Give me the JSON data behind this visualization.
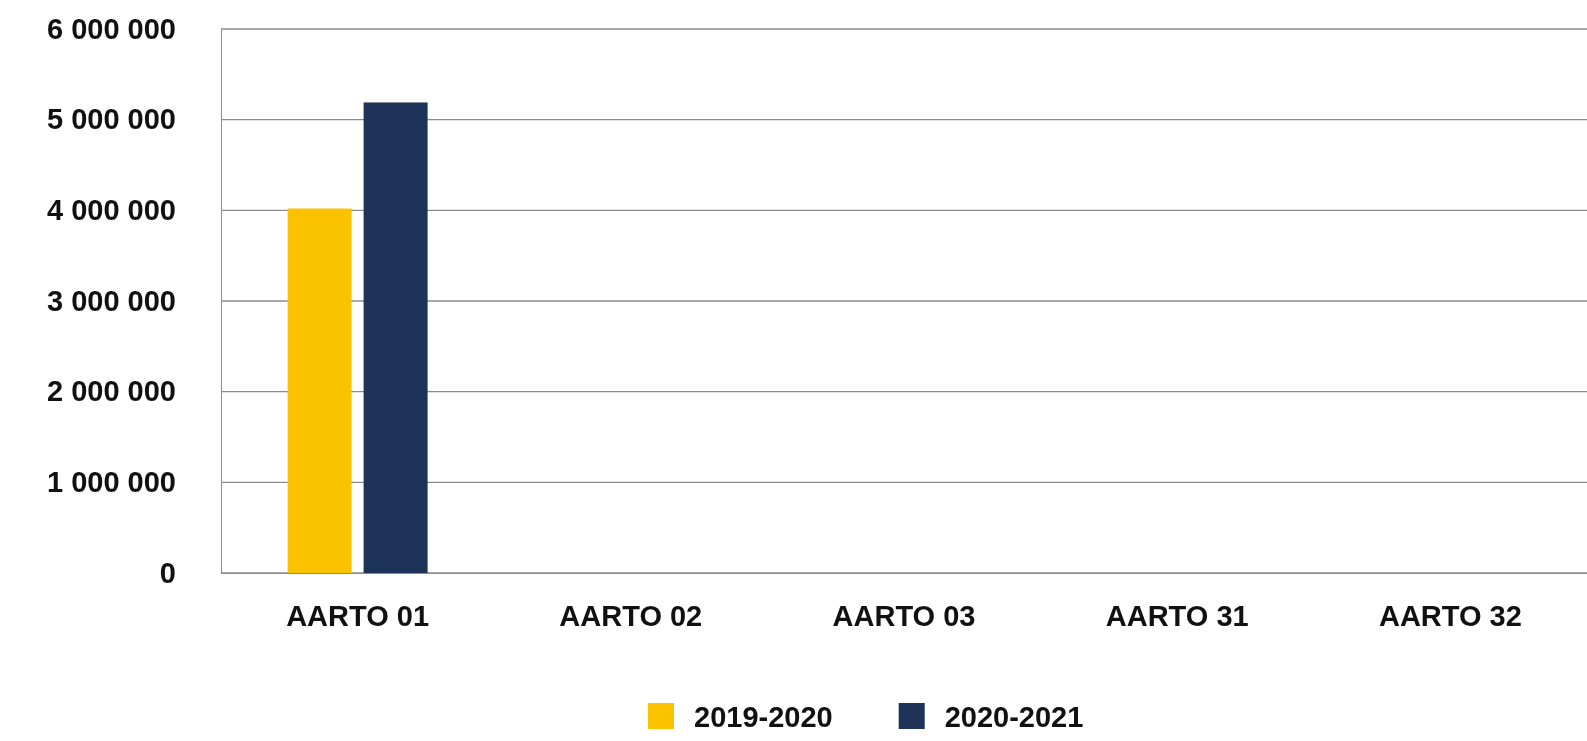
{
  "chart_data": {
    "type": "bar",
    "categories": [
      "AARTO 01",
      "AARTO 02",
      "AARTO 03",
      "AARTO 31",
      "AARTO 32"
    ],
    "series": [
      {
        "name": "2019-2020",
        "color": "#fbc200",
        "values": [
          4020000,
          0,
          0,
          0,
          0
        ]
      },
      {
        "name": "2020-2021",
        "color": "#1d3458",
        "values": [
          5190000,
          0,
          0,
          0,
          0
        ]
      }
    ],
    "ylim": [
      0,
      6000000
    ],
    "yticks": [
      {
        "value": 0,
        "label": "0"
      },
      {
        "value": 1000000,
        "label": "1 000 000"
      },
      {
        "value": 2000000,
        "label": "2 000 000"
      },
      {
        "value": 3000000,
        "label": "3 000 000"
      },
      {
        "value": 4000000,
        "label": "4 000 000"
      },
      {
        "value": 5000000,
        "label": "5 000 000"
      },
      {
        "value": 6000000,
        "label": "6 000 000"
      }
    ],
    "grid": "y",
    "legend": "bottom"
  }
}
